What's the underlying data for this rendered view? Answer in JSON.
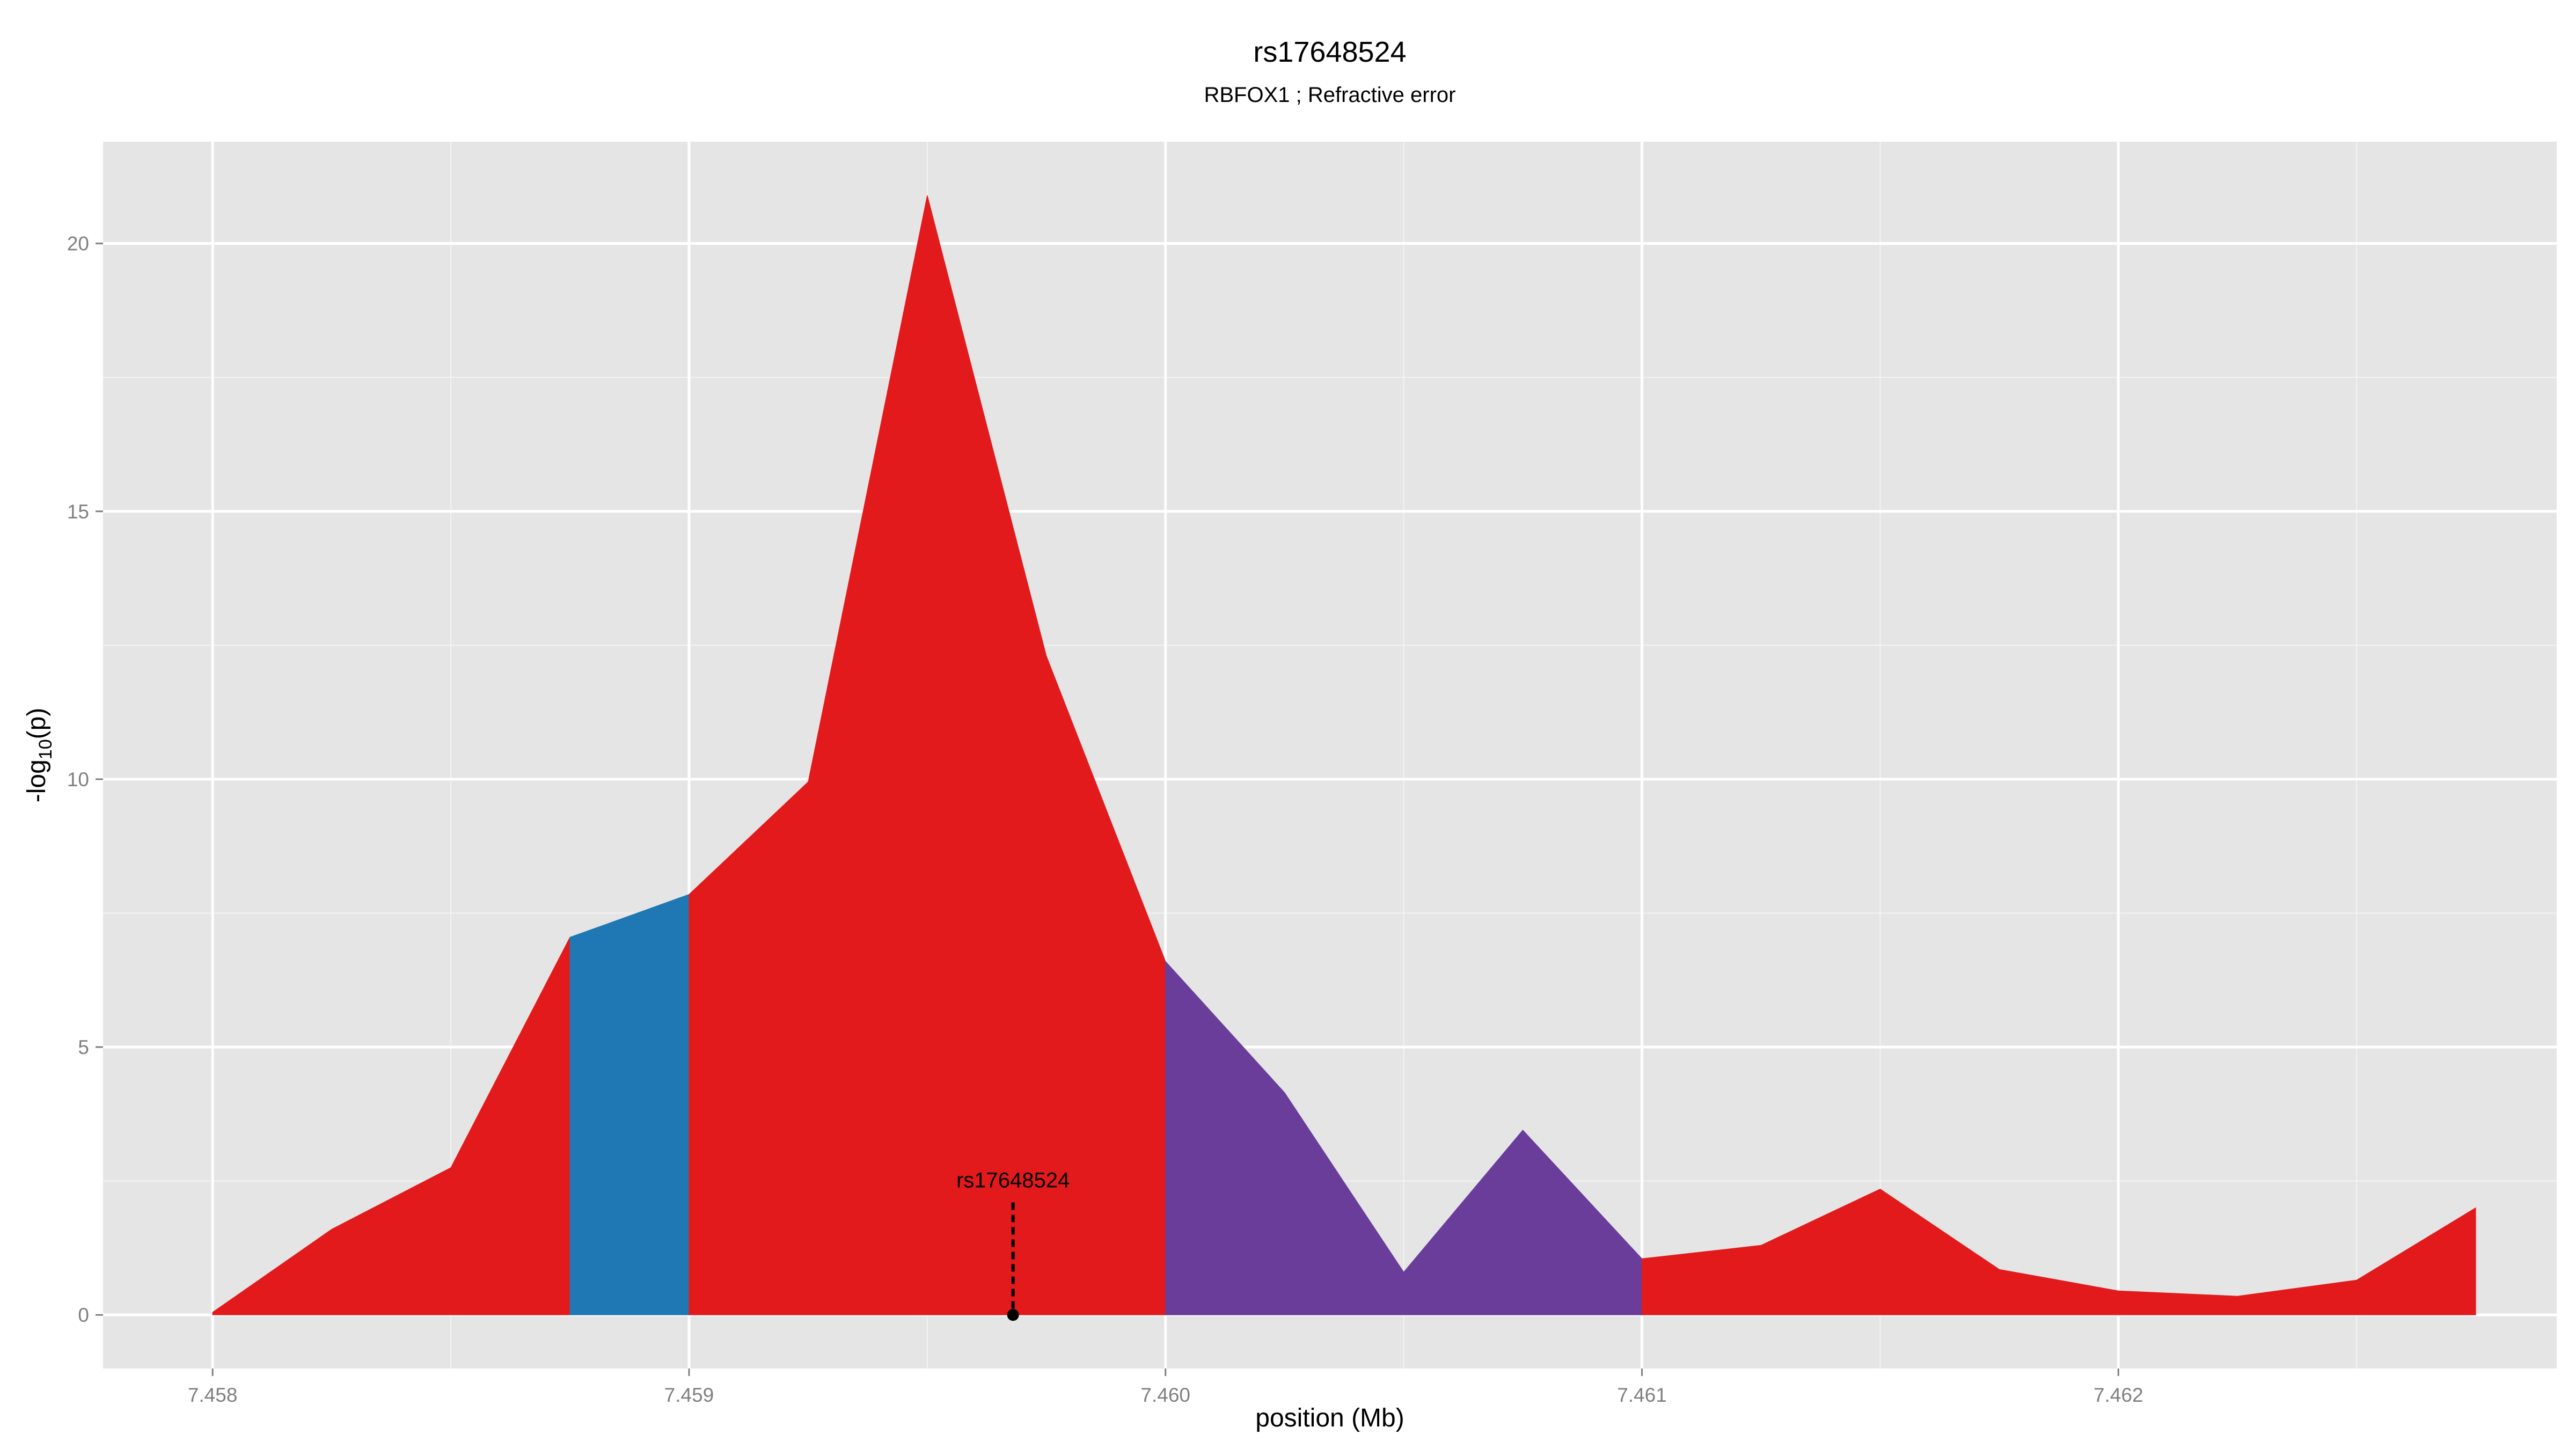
{
  "chart_data": {
    "type": "area",
    "title": "rs17648524",
    "subtitle": "RBFOX1 ; Refractive error",
    "xlabel": "position (Mb)",
    "ylabel": {
      "base": "-log",
      "subscript": "10",
      "suffix": "(p)"
    },
    "xlim": [
      7.45777,
      7.46292
    ],
    "ylim": [
      -1.0,
      21.9
    ],
    "x_ticks": [
      {
        "value": 7.458,
        "label": "7.458"
      },
      {
        "value": 7.459,
        "label": "7.459"
      },
      {
        "value": 7.46,
        "label": "7.460"
      },
      {
        "value": 7.461,
        "label": "7.461"
      },
      {
        "value": 7.462,
        "label": "7.462"
      }
    ],
    "y_ticks": [
      {
        "value": 0,
        "label": "0"
      },
      {
        "value": 5,
        "label": "5"
      },
      {
        "value": 10,
        "label": "10"
      },
      {
        "value": 15,
        "label": "15"
      },
      {
        "value": 20,
        "label": "20"
      }
    ],
    "grid": true,
    "background": "#e5e5e5",
    "gridline_color": "#ffffff",
    "segments": [
      {
        "color": "#e31a1c",
        "x": [
          7.458,
          7.45825,
          7.4585,
          7.45875
        ],
        "y": [
          0.05,
          1.6,
          2.75,
          7.05
        ]
      },
      {
        "color": "#1f78b4",
        "x": [
          7.45875,
          7.459
        ],
        "y": [
          7.05,
          7.85
        ]
      },
      {
        "color": "#e31a1c",
        "x": [
          7.459,
          7.45925,
          7.4595,
          7.45975,
          7.46
        ],
        "y": [
          7.85,
          9.95,
          20.9,
          12.3,
          6.6
        ]
      },
      {
        "color": "#6a3d9a",
        "x": [
          7.46,
          7.46025,
          7.4605,
          7.46075,
          7.461
        ],
        "y": [
          6.6,
          4.15,
          0.8,
          3.45,
          1.05
        ]
      },
      {
        "color": "#e31a1c",
        "x": [
          7.461,
          7.46125,
          7.4615,
          7.46175,
          7.462,
          7.46225,
          7.4625,
          7.46275
        ],
        "y": [
          1.05,
          1.3,
          2.35,
          0.85,
          0.45,
          0.35,
          0.65,
          2.0
        ]
      }
    ],
    "annotation": {
      "label": "rs17648524",
      "x": 7.45968,
      "y_point": 0,
      "y_line_top": 2.1
    }
  }
}
